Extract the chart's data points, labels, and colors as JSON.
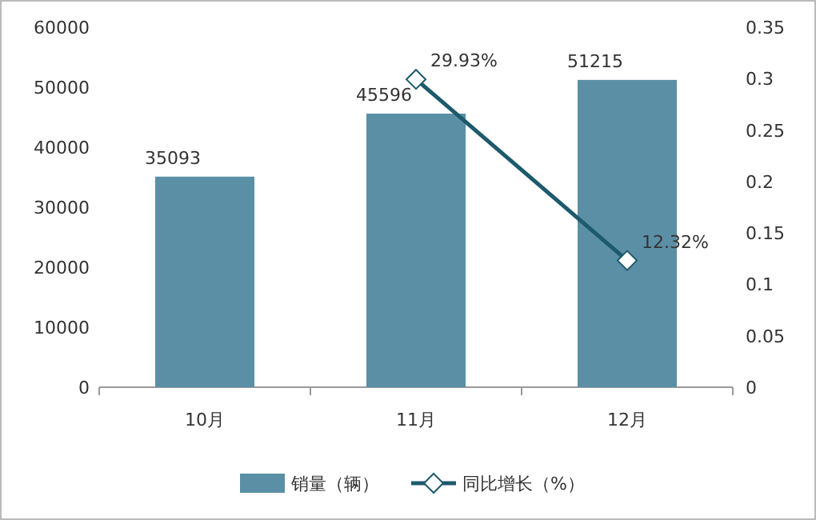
{
  "chart_data": {
    "type": "bar",
    "categories": [
      "10月",
      "11月",
      "12月"
    ],
    "series": [
      {
        "name": "销量（辆）",
        "color": "#5b8fa6",
        "values": [
          35093,
          45596,
          51215
        ],
        "value_labels": [
          "35093",
          "45596",
          "51215"
        ]
      },
      {
        "name": "同比增长（%）",
        "type": "line",
        "axis": "y2",
        "color": "#1c5a6c",
        "marker": "diamond",
        "values": [
          null,
          0.2993,
          0.1232
        ],
        "value_labels": [
          null,
          "29.93%",
          "12.32%"
        ]
      }
    ],
    "ylim": [
      0,
      60000
    ],
    "yticks": [
      0,
      10000,
      20000,
      30000,
      40000,
      50000,
      60000
    ],
    "y2lim": [
      0,
      0.35
    ],
    "y2ticks": [
      0,
      0.05,
      0.1,
      0.15,
      0.2,
      0.25,
      0.3,
      0.35
    ],
    "legend": "bottom",
    "grid": false
  }
}
